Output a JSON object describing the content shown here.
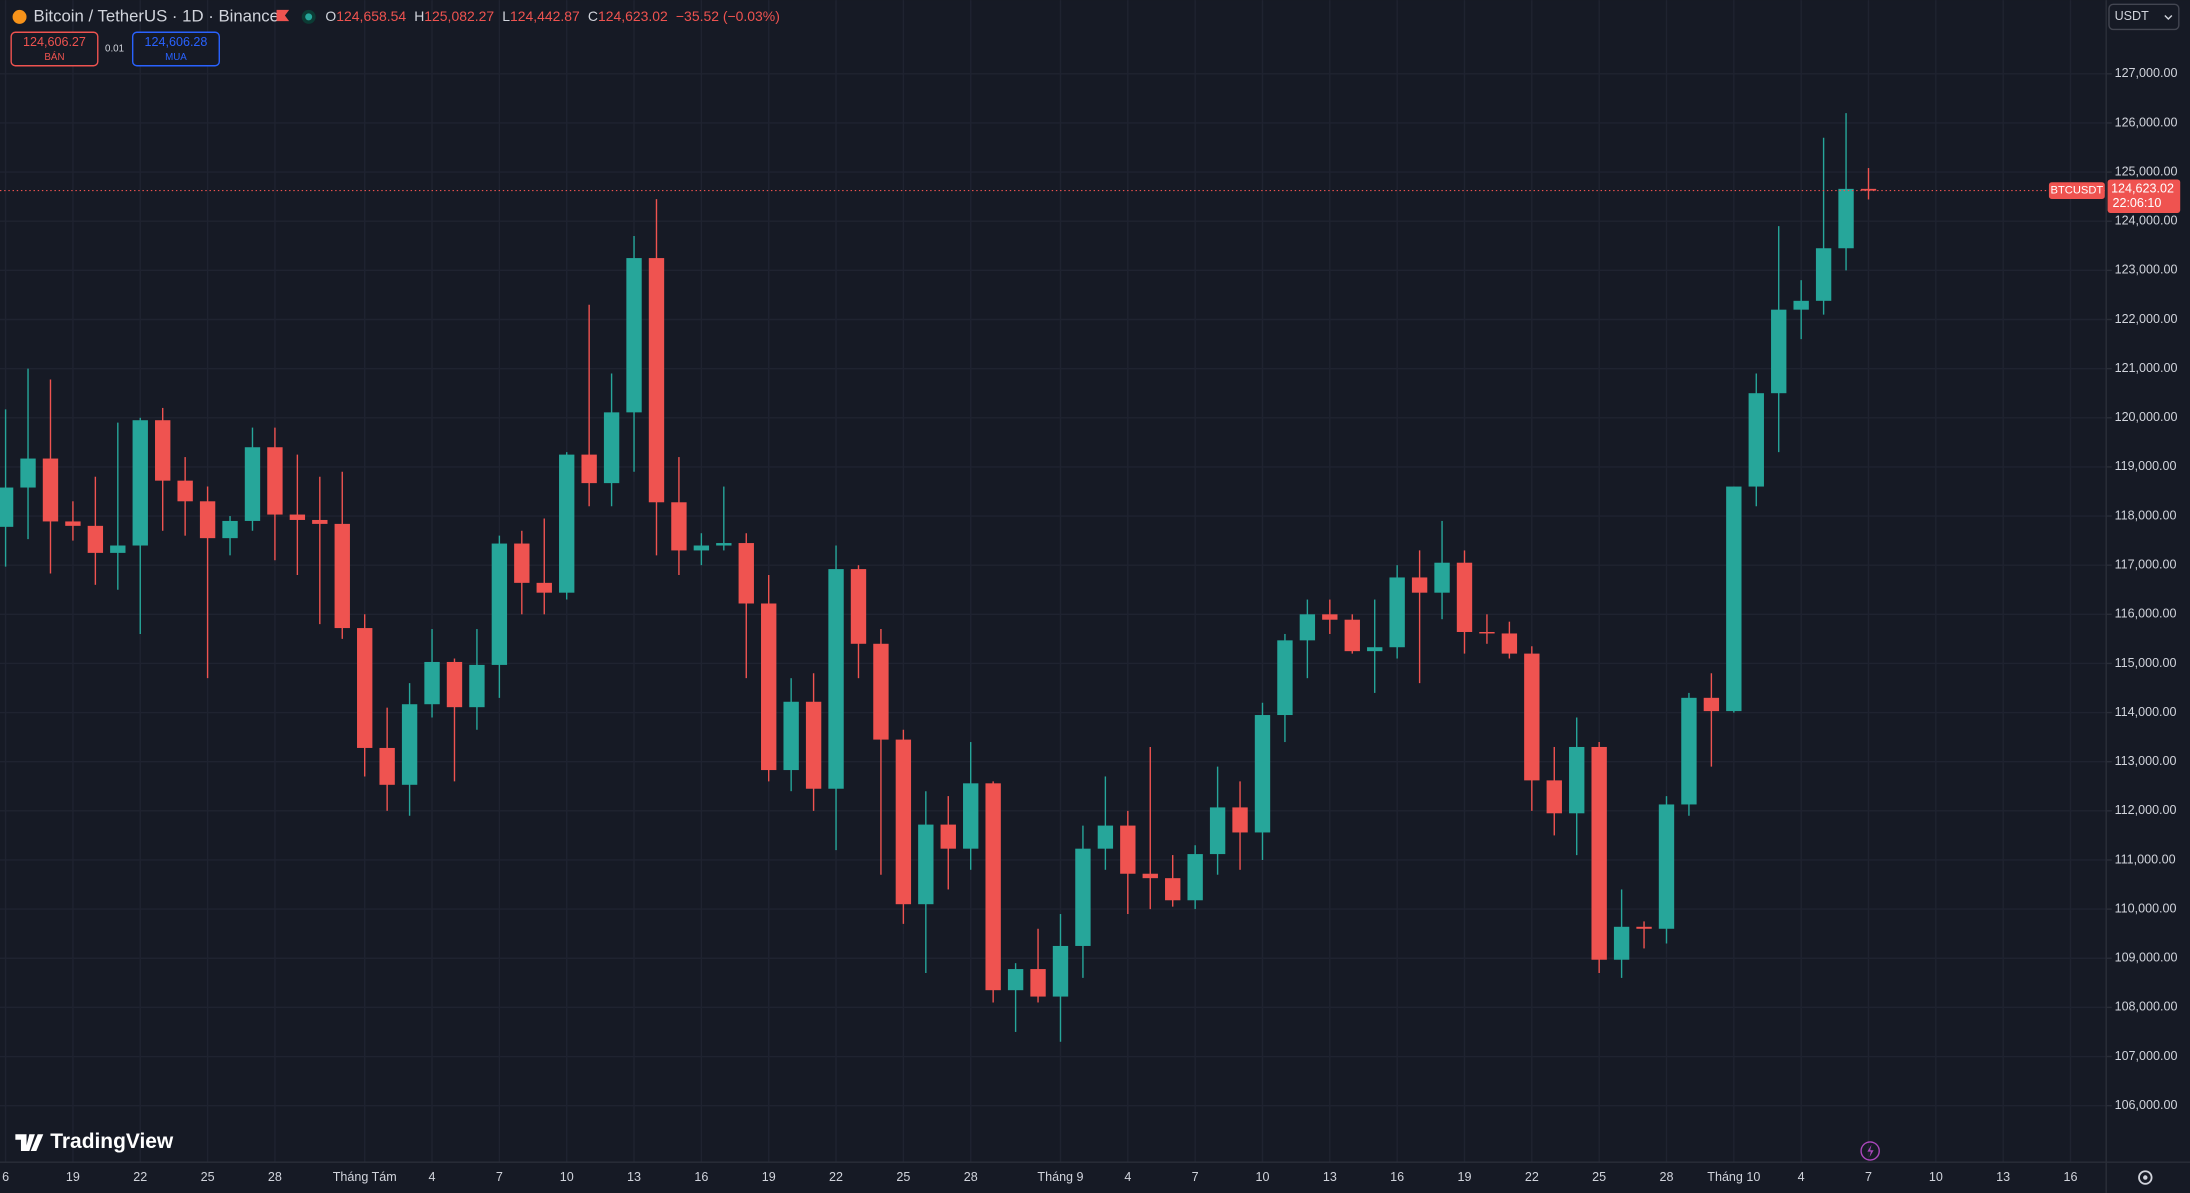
{
  "header": {
    "symbol": "Bitcoin / TetherUS · 1D · Binance",
    "o_label": "O",
    "o": "124,658.54",
    "h_label": "H",
    "h": "125,082.27",
    "l_label": "L",
    "l": "124,442.87",
    "c_label": "C",
    "c": "124,623.02",
    "change": "−35.52 (−0.03%)"
  },
  "trade": {
    "sell_price": "124,606.27",
    "sell_label": "BÁN",
    "spread": "0.01",
    "buy_price": "124,606.28",
    "buy_label": "MUA"
  },
  "currency": "USDT",
  "price_label": {
    "symbol": "BTCUSDT",
    "price": "124,623.02",
    "countdown": "22:06:10"
  },
  "brand": "TradingView",
  "chart_data": {
    "type": "candlestick",
    "up_color": "#26a69a",
    "down_color": "#ef5350",
    "grid": true,
    "categories": [
      "6",
      null,
      null,
      "19",
      null,
      null,
      "22",
      null,
      null,
      "25",
      null,
      null,
      "28",
      null,
      null,
      null,
      "Tháng Tám",
      null,
      null,
      "4",
      null,
      null,
      "7",
      null,
      null,
      "10",
      null,
      null,
      "13",
      null,
      null,
      "16",
      null,
      null,
      "19",
      null,
      null,
      "22",
      null,
      null,
      "25",
      null,
      null,
      "28",
      null,
      null,
      null,
      "Tháng 9",
      null,
      null,
      "4",
      null,
      null,
      "7",
      null,
      null,
      "10",
      null,
      null,
      "13",
      null,
      null,
      "16",
      null,
      null,
      "19",
      null,
      null,
      "22",
      null,
      null,
      "25",
      null,
      null,
      "28",
      null,
      null,
      "Tháng 10",
      null,
      null,
      "4",
      null,
      null,
      "7",
      null,
      null,
      "10",
      null,
      null,
      "13",
      null,
      null,
      "16",
      null
    ],
    "open": [
      117780,
      118580,
      119170,
      117890,
      117800,
      117250,
      117400,
      119950,
      118720,
      118300,
      117550,
      117900,
      119400,
      118030,
      117920,
      117840,
      115720,
      113280,
      112530,
      114170,
      115030,
      114110,
      114970,
      117440,
      116640,
      116440,
      119250,
      118670,
      120110,
      123250,
      118280,
      117300,
      117400,
      117450,
      116220,
      112830,
      114220,
      112450,
      116920,
      115400,
      113450,
      110100,
      111720,
      111230,
      112560,
      108350,
      108780,
      108220,
      109250,
      111230,
      111700,
      110720,
      110630,
      110180,
      111120,
      112070,
      111560,
      113950,
      115470,
      116000,
      115890,
      115250,
      115330,
      116750,
      116440,
      117050,
      115640,
      115610,
      115200,
      112620,
      111950,
      113300,
      108970,
      109640,
      109600,
      112130,
      114300,
      114030,
      118600,
      120500,
      122200,
      122380,
      123450,
      124658.54,
      null,
      null,
      null,
      null,
      null,
      null,
      null,
      null,
      null,
      null
    ],
    "high": [
      120170,
      121000,
      120780,
      118300,
      118800,
      119900,
      120000,
      120200,
      119200,
      118600,
      118000,
      119800,
      119800,
      119250,
      118800,
      118900,
      116000,
      114100,
      114600,
      115700,
      115100,
      115700,
      117600,
      117700,
      117950,
      119300,
      122300,
      120900,
      123700,
      124450,
      119200,
      117650,
      118600,
      117650,
      116800,
      114700,
      114800,
      117400,
      117000,
      115700,
      113650,
      112400,
      112300,
      113400,
      112600,
      108900,
      109600,
      109900,
      111700,
      112700,
      112000,
      113300,
      111100,
      111300,
      112900,
      112600,
      114200,
      115600,
      116300,
      116300,
      116000,
      116300,
      117000,
      117300,
      117900,
      117300,
      116000,
      115850,
      115350,
      113300,
      113900,
      113400,
      110400,
      109750,
      112300,
      114400,
      114800,
      118600,
      120900,
      123900,
      122800,
      125700,
      126200,
      125082.27,
      null,
      null,
      null,
      null,
      null,
      null,
      null,
      null,
      null,
      null
    ],
    "low": [
      116970,
      117530,
      116830,
      117500,
      116600,
      116500,
      115600,
      117700,
      117600,
      114700,
      117200,
      117700,
      117100,
      116800,
      115800,
      115500,
      112700,
      112000,
      111900,
      113900,
      112600,
      113650,
      114300,
      116000,
      116000,
      116300,
      118200,
      118200,
      118900,
      117200,
      116800,
      117000,
      117300,
      114700,
      112600,
      112400,
      112000,
      111200,
      114700,
      110700,
      109700,
      108700,
      110400,
      110800,
      108100,
      107500,
      108100,
      107300,
      108600,
      110800,
      109900,
      110000,
      110050,
      110000,
      110700,
      110800,
      111000,
      113400,
      114700,
      115600,
      115200,
      114400,
      115100,
      114600,
      115900,
      115200,
      115400,
      115100,
      112000,
      111500,
      111100,
      108700,
      108600,
      109200,
      109300,
      111900,
      112900,
      114000,
      118200,
      119300,
      121600,
      122100,
      123000,
      124442.87,
      null,
      null,
      null,
      null,
      null,
      null,
      null,
      null,
      null,
      null
    ],
    "close": [
      118580,
      119170,
      117890,
      117800,
      117250,
      117400,
      119950,
      118720,
      118300,
      117550,
      117900,
      119400,
      118030,
      117920,
      117840,
      115720,
      113280,
      112530,
      114170,
      115030,
      114110,
      114970,
      117440,
      116640,
      116440,
      119250,
      118670,
      120110,
      123250,
      118280,
      117300,
      117400,
      117450,
      116220,
      112830,
      114220,
      112450,
      116920,
      115400,
      113450,
      110100,
      111720,
      111230,
      112560,
      108350,
      108780,
      108220,
      109250,
      111230,
      111700,
      110720,
      110630,
      110180,
      111120,
      112070,
      111560,
      113950,
      115470,
      116000,
      115890,
      115250,
      115330,
      116750,
      116440,
      117050,
      115640,
      115610,
      115200,
      112620,
      111950,
      113300,
      108970,
      109640,
      109600,
      112130,
      114300,
      114030,
      118600,
      120500,
      122200,
      122380,
      123450,
      124658.54,
      124623.02,
      null,
      null,
      null,
      null,
      null,
      null,
      null,
      null,
      null,
      null
    ],
    "ylim": [
      104850,
      128500
    ],
    "yticks": [
      {
        "value": 106000,
        "label": "106,000.00"
      },
      {
        "value": 107000,
        "label": "107,000.00"
      },
      {
        "value": 108000,
        "label": "108,000.00"
      },
      {
        "value": 109000,
        "label": "109,000.00"
      },
      {
        "value": 110000,
        "label": "110,000.00"
      },
      {
        "value": 111000,
        "label": "111,000.00"
      },
      {
        "value": 112000,
        "label": "112,000.00"
      },
      {
        "value": 113000,
        "label": "113,000.00"
      },
      {
        "value": 114000,
        "label": "114,000.00"
      },
      {
        "value": 115000,
        "label": "115,000.00"
      },
      {
        "value": 116000,
        "label": "116,000.00"
      },
      {
        "value": 117000,
        "label": "117,000.00"
      },
      {
        "value": 118000,
        "label": "118,000.00"
      },
      {
        "value": 119000,
        "label": "119,000.00"
      },
      {
        "value": 120000,
        "label": "120,000.00"
      },
      {
        "value": 121000,
        "label": "121,000.00"
      },
      {
        "value": 122000,
        "label": "122,000.00"
      },
      {
        "value": 123000,
        "label": "123,000.00"
      },
      {
        "value": 124000,
        "label": "124,000.00"
      },
      {
        "value": 125000,
        "label": "125,000.00"
      },
      {
        "value": 126000,
        "label": "126,000.00"
      },
      {
        "value": 127000,
        "label": "127,000.00"
      }
    ]
  }
}
